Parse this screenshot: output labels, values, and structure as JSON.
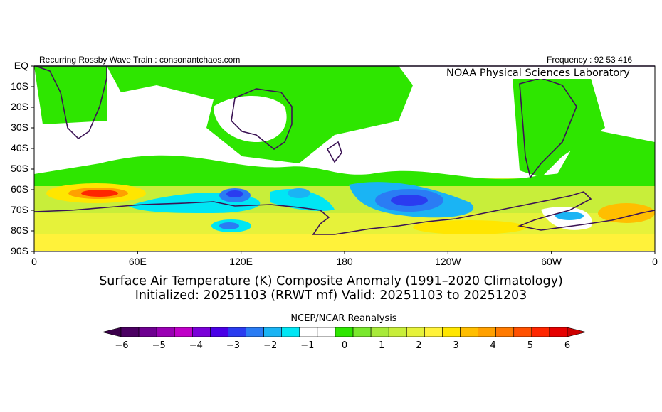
{
  "header": {
    "left_text": "Recurring Rossby Wave Train : consonantchaos.com",
    "right_text": "Frequency : 92 53 416",
    "lab_name": "NOAA Physical Sciences Laboratory"
  },
  "map": {
    "lat_labels": [
      "EQ",
      "10S",
      "20S",
      "30S",
      "40S",
      "50S",
      "60S",
      "70S",
      "80S",
      "90S"
    ],
    "lon_labels": [
      "0",
      "60E",
      "120E",
      "180",
      "120W",
      "60W",
      "0"
    ]
  },
  "titles": {
    "line1": "Surface Air Temperature (K) Composite Anomaly (1991–2020 Climatology)",
    "line2": "Initialized: 20251103 (RRWT mf) Valid: 20251103 to 20251203"
  },
  "colorbar": {
    "source": "NCEP/NCAR Reanalysis",
    "ticks": [
      "−6",
      "−5",
      "−4",
      "−3",
      "−2",
      "−1",
      "0",
      "1",
      "2",
      "3",
      "4",
      "5",
      "6"
    ],
    "colors": [
      "#4b0062",
      "#6e0090",
      "#9a00b4",
      "#c000c8",
      "#7a00d8",
      "#4a00e6",
      "#2a3cf0",
      "#2a7cf4",
      "#1ab4f4",
      "#00e6f4",
      "#ffffff",
      "#ffffff",
      "#2ee600",
      "#7ae82e",
      "#a8ea3a",
      "#c8ee3a",
      "#e6f23a",
      "#fff23a",
      "#ffe600",
      "#ffbe00",
      "#ffa000",
      "#ff7a00",
      "#ff5000",
      "#ff2600",
      "#e60000"
    ]
  }
}
